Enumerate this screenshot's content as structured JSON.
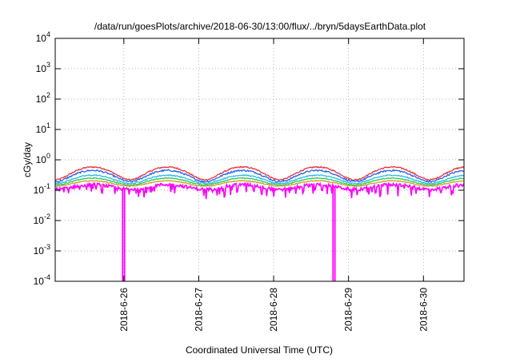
{
  "chart_data": {
    "type": "line",
    "title": "/data/run/goesPlots/archive/2018-06-30/13:00/flux/../bryn/5daysEarthData.plot",
    "xlabel": "Coordinated Universal Time (UTC)",
    "ylabel": "cGy/day",
    "x_domain": [
      "2018-06-25 02:00",
      "2018-06-30 13:00"
    ],
    "x_ticks": [
      {
        "date": "2018-06-26 00:00",
        "label": "2018-6-26"
      },
      {
        "date": "2018-06-27 00:00",
        "label": "2018-6-27"
      },
      {
        "date": "2018-06-28 00:00",
        "label": "2018-6-28"
      },
      {
        "date": "2018-06-29 00:00",
        "label": "2018-6-29"
      },
      {
        "date": "2018-06-30 00:00",
        "label": "2018-6-30"
      }
    ],
    "y_scale": "log",
    "ylim": [
      0.0001,
      10000
    ],
    "y_ticks": [
      {
        "value": 0.0001,
        "base": "10",
        "exp": "-4"
      },
      {
        "value": 0.001,
        "base": "10",
        "exp": "-3"
      },
      {
        "value": 0.01,
        "base": "10",
        "exp": "-2"
      },
      {
        "value": 0.1,
        "base": "10",
        "exp": "-1"
      },
      {
        "value": 1,
        "base": "10",
        "exp": "0"
      },
      {
        "value": 10,
        "base": "10",
        "exp": "1"
      },
      {
        "value": 100,
        "base": "10",
        "exp": "2"
      },
      {
        "value": 1000,
        "base": "10",
        "exp": "3"
      },
      {
        "value": 10000,
        "base": "10",
        "exp": "4"
      }
    ],
    "grid": true,
    "legend": "none",
    "series": [
      {
        "color": "#e8333a",
        "base": 0.4,
        "amplitude": 0.45,
        "noise": 0.05
      },
      {
        "color": "#2a62e8",
        "base": 0.32,
        "amplitude": 0.4,
        "noise": 0.06
      },
      {
        "color": "#2bbbe8",
        "base": 0.24,
        "amplitude": 0.3,
        "noise": 0.04
      },
      {
        "color": "#29c85a",
        "base": 0.2,
        "amplitude": 0.25,
        "noise": 0.03
      },
      {
        "color": "#c8a020",
        "base": 0.17,
        "amplitude": 0.2,
        "noise": 0.03
      },
      {
        "color": "#ff00ff",
        "base": 0.13,
        "amplitude": 0.18,
        "noise": 0.12
      }
    ],
    "dropouts": [
      {
        "date": "2018-06-25 23:55",
        "value": 0.0001
      },
      {
        "date": "2018-06-28 19:20",
        "value": 0.0001
      }
    ]
  }
}
